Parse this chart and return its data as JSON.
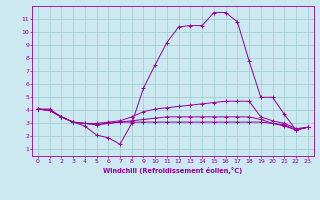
{
  "xlabel": "Windchill (Refroidissement éolien,°C)",
  "bg_color": "#cce8f0",
  "line_color": "#990099",
  "grid_color": "#99cccc",
  "xlim": [
    -0.5,
    23.5
  ],
  "ylim": [
    0.5,
    12.0
  ],
  "xticks": [
    0,
    1,
    2,
    3,
    4,
    5,
    6,
    7,
    8,
    9,
    10,
    11,
    12,
    13,
    14,
    15,
    16,
    17,
    18,
    19,
    20,
    21,
    22,
    23
  ],
  "yticks": [
    1,
    2,
    3,
    4,
    5,
    6,
    7,
    8,
    9,
    10,
    11
  ],
  "lines": [
    {
      "x": [
        0,
        1,
        2,
        3,
        4,
        5,
        6,
        7,
        8,
        9,
        10,
        11,
        12,
        13,
        14,
        15,
        16,
        17,
        18,
        19,
        20,
        21,
        22,
        23
      ],
      "y": [
        4.1,
        4.1,
        3.5,
        3.1,
        2.8,
        2.1,
        1.9,
        1.4,
        3.0,
        5.7,
        7.5,
        9.2,
        10.4,
        10.5,
        10.5,
        11.5,
        11.5,
        10.8,
        7.8,
        5.0,
        5.0,
        3.7,
        2.5,
        2.7
      ]
    },
    {
      "x": [
        0,
        1,
        2,
        3,
        4,
        5,
        6,
        7,
        8,
        9,
        10,
        11,
        12,
        13,
        14,
        15,
        16,
        17,
        18,
        19,
        20,
        21,
        22,
        23
      ],
      "y": [
        4.1,
        4.0,
        3.5,
        3.1,
        3.0,
        3.0,
        3.1,
        3.2,
        3.5,
        3.9,
        4.1,
        4.2,
        4.3,
        4.4,
        4.5,
        4.6,
        4.7,
        4.7,
        4.7,
        3.5,
        3.2,
        3.0,
        2.6,
        2.7
      ]
    },
    {
      "x": [
        0,
        1,
        2,
        3,
        4,
        5,
        6,
        7,
        8,
        9,
        10,
        11,
        12,
        13,
        14,
        15,
        16,
        17,
        18,
        19,
        20,
        21,
        22,
        23
      ],
      "y": [
        4.1,
        4.0,
        3.5,
        3.1,
        3.0,
        2.9,
        3.0,
        3.1,
        3.2,
        3.3,
        3.4,
        3.5,
        3.5,
        3.5,
        3.5,
        3.5,
        3.5,
        3.5,
        3.5,
        3.3,
        3.0,
        2.8,
        2.5,
        2.7
      ]
    },
    {
      "x": [
        0,
        1,
        2,
        3,
        4,
        5,
        6,
        7,
        8,
        9,
        10,
        11,
        12,
        13,
        14,
        15,
        16,
        17,
        18,
        19,
        20,
        21,
        22,
        23
      ],
      "y": [
        4.1,
        4.0,
        3.5,
        3.1,
        3.0,
        2.9,
        3.0,
        3.1,
        3.1,
        3.1,
        3.1,
        3.1,
        3.1,
        3.1,
        3.1,
        3.1,
        3.1,
        3.1,
        3.1,
        3.1,
        3.0,
        2.9,
        2.5,
        2.7
      ]
    }
  ]
}
